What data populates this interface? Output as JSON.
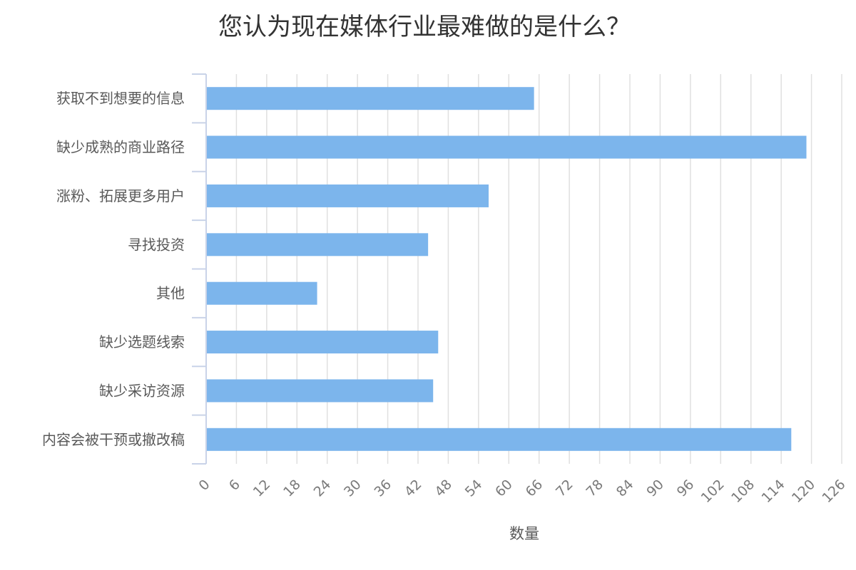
{
  "chart_data": {
    "type": "bar",
    "orientation": "horizontal",
    "title": "您认为现在媒体行业最难做的是什么？",
    "xlabel": "数量",
    "ylabel": "",
    "categories": [
      "获取不到想要的信息",
      "缺少成熟的商业路径",
      "涨粉、拓展更多用户",
      "寻找投资",
      "其他",
      "缺少选题线索",
      "缺少采访资源",
      "内容会被干预或撤改稿"
    ],
    "values": [
      65,
      119,
      56,
      44,
      22,
      46,
      45,
      116
    ],
    "xlim": [
      0,
      126
    ],
    "xticks": [
      "0",
      "6",
      "12",
      "18",
      "24",
      "30",
      "36",
      "42",
      "48",
      "54",
      "60",
      "66",
      "72",
      "78",
      "84",
      "90",
      "96",
      "102",
      "108",
      "114",
      "120",
      "126"
    ],
    "grid": "vertical",
    "legend": "none",
    "bar_color": "#7cb5ec",
    "grid_color": "#e0e0e0",
    "axis_color": "#c9d3e8"
  }
}
